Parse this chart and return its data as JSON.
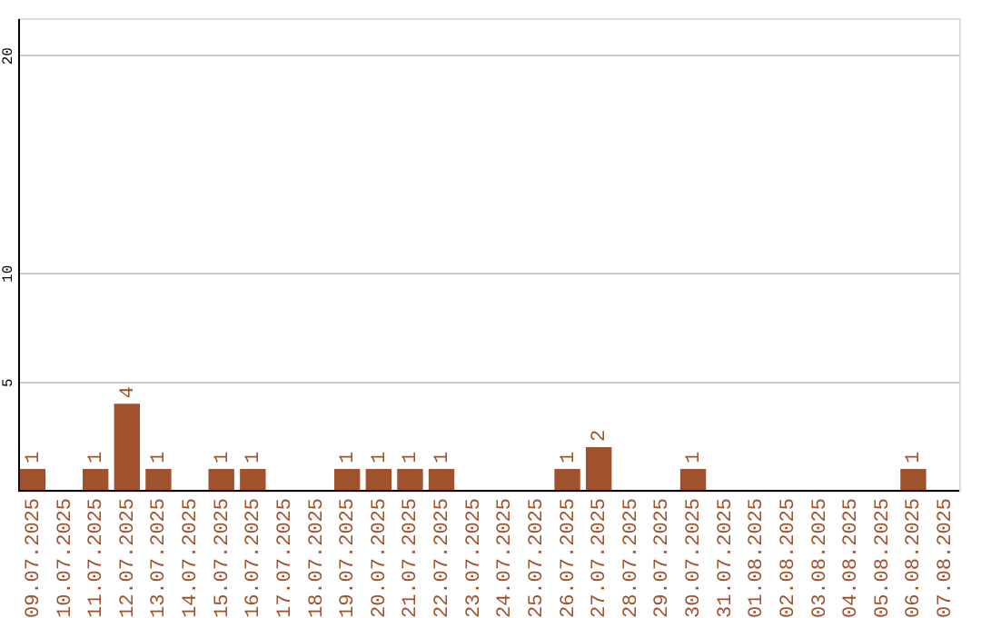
{
  "chart_data": {
    "type": "bar",
    "categories": [
      "09.07.2025",
      "10.07.2025",
      "11.07.2025",
      "12.07.2025",
      "13.07.2025",
      "14.07.2025",
      "15.07.2025",
      "16.07.2025",
      "17.07.2025",
      "18.07.2025",
      "19.07.2025",
      "20.07.2025",
      "21.07.2025",
      "22.07.2025",
      "23.07.2025",
      "24.07.2025",
      "25.07.2025",
      "26.07.2025",
      "27.07.2025",
      "28.07.2025",
      "29.07.2025",
      "30.07.2025",
      "31.07.2025",
      "01.08.2025",
      "02.08.2025",
      "03.08.2025",
      "04.08.2025",
      "05.08.2025",
      "06.08.2025",
      "07.08.2025"
    ],
    "values": [
      1,
      0,
      1,
      4,
      1,
      0,
      1,
      1,
      0,
      0,
      1,
      1,
      1,
      1,
      0,
      0,
      0,
      1,
      2,
      0,
      0,
      1,
      0,
      0,
      0,
      0,
      0,
      0,
      1,
      0
    ],
    "value_labels": [
      "1",
      null,
      "1",
      "4",
      "1",
      null,
      "1",
      "1",
      null,
      null,
      "1",
      "1",
      "1",
      "1",
      null,
      null,
      null,
      "1",
      "2",
      null,
      null,
      "1",
      null,
      null,
      null,
      null,
      null,
      null,
      "1",
      null
    ],
    "color": "#a0522d",
    "ylim": [
      0,
      21.7
    ],
    "yticks": [
      5,
      10,
      20
    ],
    "grid": "y"
  }
}
